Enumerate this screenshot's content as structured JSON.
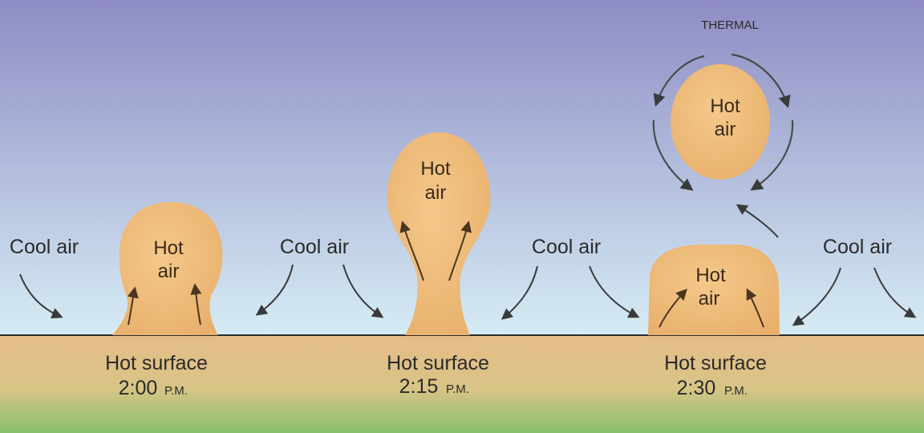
{
  "title": "THERMAL",
  "colors": {
    "sky_top": "#8e8cc4",
    "sky_bottom": "#d6ecf4",
    "ground_top": "#e6bc88",
    "ground_bottom": "#88c06a",
    "hot_air": "#e8b06c",
    "hot_air_light": "#f4c88a",
    "arrow": "#3a3a3a"
  },
  "labels": {
    "cool_air": "Cool air",
    "hot_air_line1": "Hot",
    "hot_air_line2": "air",
    "hot_surface": "Hot surface"
  },
  "stages": [
    {
      "time": "2:00",
      "period": "P.M."
    },
    {
      "time": "2:15",
      "period": "P.M."
    },
    {
      "time": "2:30",
      "period": "P.M."
    }
  ]
}
